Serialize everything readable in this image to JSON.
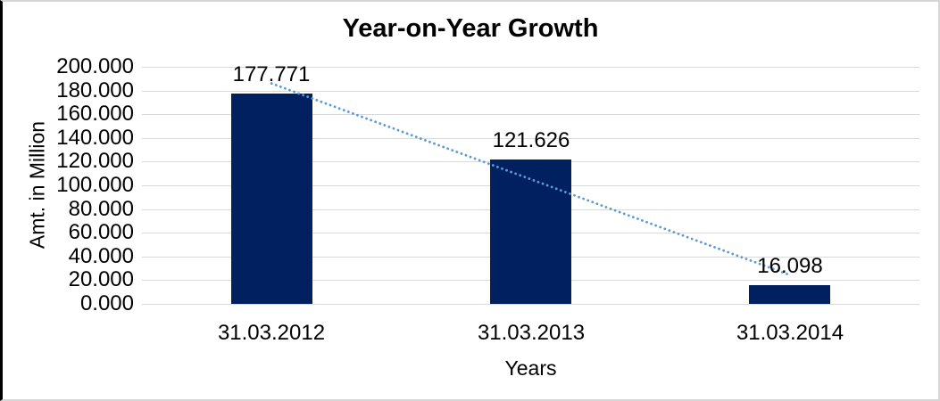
{
  "frame": {
    "background": "#ffffff",
    "border_color": "#d6d6d6",
    "left_edge_color": "#000000"
  },
  "chart_data": {
    "type": "bar",
    "title": "Year-on-Year Growth",
    "xlabel": "Years",
    "ylabel": "Amt. in Million",
    "categories": [
      "31.03.2012",
      "31.03.2013",
      "31.03.2014"
    ],
    "values": [
      177.771,
      121.626,
      16.098
    ],
    "data_labels": [
      "177.771",
      "121.626",
      "16.098"
    ],
    "ylim": [
      0,
      200
    ],
    "ytick_step": 20,
    "yticks": [
      "200.000",
      "180.000",
      "160.000",
      "140.000",
      "120.000",
      "100.000",
      "80.000",
      "60.000",
      "40.000",
      "20.000",
      "0.000"
    ],
    "grid": true,
    "legend_position": "none",
    "colors": {
      "bar": "#002060",
      "gridline": "#d9d9d9",
      "trendline": "#5b9bd5",
      "text": "#000000"
    },
    "trendline": {
      "type": "linear",
      "style": "dotted"
    }
  }
}
